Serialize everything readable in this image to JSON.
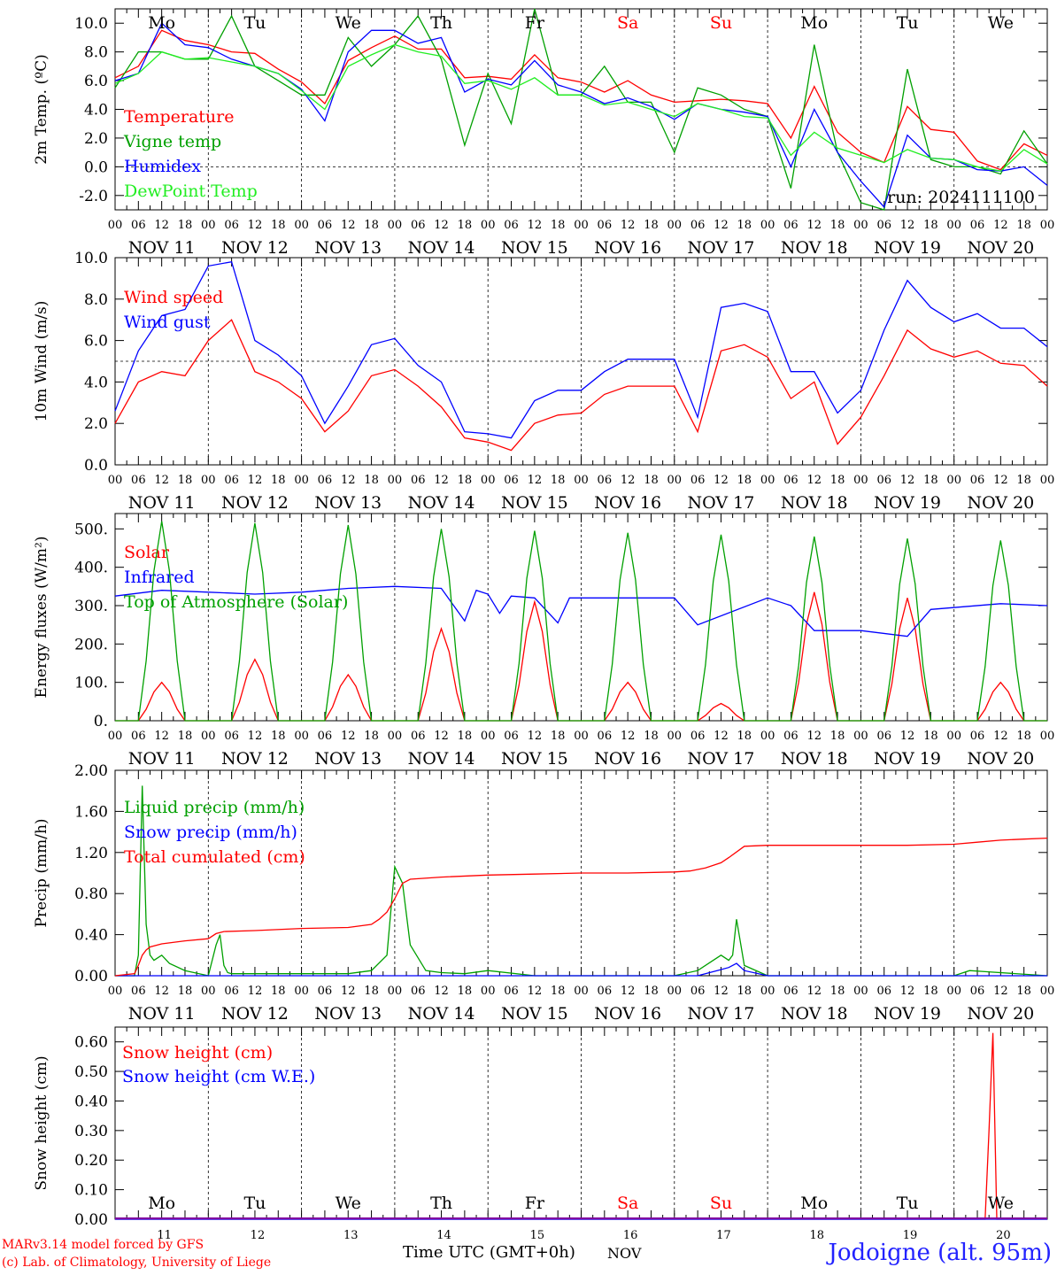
{
  "footer": {
    "model": "MARv3.14 model forced by GFS",
    "lab": "(c) Lab. of Climatology, University of Liege",
    "time_label": "Time UTC (GMT+0h)",
    "month_label": "NOV",
    "location": "Jodoigne (alt. 95m)"
  },
  "colors": {
    "red": "#ff0000",
    "green": "#00a000",
    "blue": "#0000ff",
    "lightgreen": "#22ee22",
    "weekend": "#ff0000",
    "weekday": "#000000",
    "snow_axis": "#8000a0"
  },
  "days": {
    "weekday_labels": [
      "Mo",
      "Tu",
      "We",
      "Th",
      "Fr",
      "Sa",
      "Su",
      "Mo",
      "Tu",
      "We"
    ],
    "weekend": [
      false,
      false,
      false,
      false,
      false,
      true,
      true,
      false,
      false,
      false
    ],
    "date_labels": [
      "NOV 11",
      "NOV 12",
      "NOV 13",
      "NOV 14",
      "NOV 15",
      "NOV 16",
      "NOV 17",
      "NOV 18",
      "NOV 19",
      "NOV 20"
    ],
    "day_numbers": [
      "11",
      "12",
      "13",
      "14",
      "15",
      "16",
      "17",
      "18",
      "19",
      "20"
    ],
    "hour_labels": [
      "00",
      "06",
      "12",
      "18"
    ],
    "final_hour_label": "00"
  },
  "chart_data": [
    {
      "type": "line",
      "ylabel": "2m Temp. (ºC)",
      "ylim": [
        -3,
        11
      ],
      "yticks": [
        "-2.0",
        "0.0",
        "2.0",
        "4.0",
        "6.0",
        "8.0",
        "10.0"
      ],
      "x_unit": "hours since NOV 11 00 UTC",
      "xlim": [
        0,
        240
      ],
      "reference_line": 0,
      "annotation": "run: 2024111100",
      "series": [
        {
          "name": "Temperature",
          "color": "red",
          "x": [
            0,
            6,
            12,
            18,
            24,
            30,
            36,
            42,
            48,
            54,
            60,
            66,
            72,
            78,
            84,
            90,
            96,
            102,
            108,
            114,
            120,
            126,
            132,
            138,
            144,
            150,
            156,
            162,
            168,
            174,
            180,
            186,
            192,
            198,
            204,
            210,
            216,
            222,
            228,
            234,
            240
          ],
          "y": [
            6.2,
            7.0,
            9.5,
            8.8,
            8.5,
            8.0,
            7.9,
            6.8,
            5.9,
            4.4,
            7.4,
            8.3,
            9.1,
            8.2,
            8.2,
            6.2,
            6.3,
            6.1,
            7.8,
            6.2,
            5.9,
            5.2,
            6.0,
            5.0,
            4.5,
            4.6,
            4.7,
            4.6,
            4.4,
            2.0,
            5.6,
            2.4,
            1.0,
            0.3,
            4.2,
            2.6,
            2.4,
            0.4,
            -0.2,
            1.6,
            0.8
          ]
        },
        {
          "name": "Vigne temp",
          "color": "green",
          "x": [
            0,
            6,
            12,
            18,
            24,
            30,
            36,
            42,
            48,
            54,
            60,
            66,
            72,
            78,
            84,
            90,
            96,
            102,
            108,
            114,
            120,
            126,
            132,
            138,
            144,
            150,
            156,
            162,
            168,
            174,
            180,
            186,
            192,
            198,
            204,
            210,
            216,
            222,
            228,
            234,
            240
          ],
          "y": [
            5.5,
            8.0,
            8.0,
            7.5,
            7.5,
            10.5,
            7.0,
            6.0,
            5.0,
            5.0,
            9.0,
            7.0,
            8.5,
            10.5,
            7.5,
            1.5,
            6.5,
            3.0,
            11.0,
            5.0,
            5.0,
            7.0,
            4.5,
            4.5,
            1.0,
            5.5,
            5.0,
            4.0,
            3.5,
            -1.5,
            8.5,
            1.0,
            -2.5,
            -3.0,
            6.8,
            0.5,
            0.0,
            0.0,
            -0.5,
            2.5,
            0.2
          ]
        },
        {
          "name": "Humidex",
          "color": "blue",
          "x": [
            0,
            6,
            12,
            18,
            24,
            30,
            36,
            42,
            48,
            54,
            60,
            66,
            72,
            78,
            84,
            90,
            96,
            102,
            108,
            114,
            120,
            126,
            132,
            138,
            144,
            150,
            156,
            162,
            168,
            174,
            180,
            186,
            192,
            198,
            204,
            210,
            216,
            222,
            228,
            234,
            240
          ],
          "y": [
            6.0,
            6.5,
            10.0,
            8.5,
            8.3,
            7.5,
            7.0,
            6.5,
            5.4,
            3.2,
            8.0,
            9.5,
            9.5,
            8.6,
            9.0,
            5.2,
            6.1,
            5.7,
            7.4,
            5.7,
            5.2,
            4.4,
            4.8,
            4.2,
            3.3,
            4.4,
            4.0,
            3.8,
            3.5,
            0.0,
            4.0,
            1.0,
            -1.0,
            -2.8,
            2.2,
            0.6,
            0.5,
            -0.2,
            -0.3,
            0.0,
            -1.3
          ]
        },
        {
          "name": "DewPoint Temp",
          "color": "lightgreen",
          "x": [
            0,
            6,
            12,
            18,
            24,
            30,
            36,
            42,
            48,
            54,
            60,
            66,
            72,
            78,
            84,
            90,
            96,
            102,
            108,
            114,
            120,
            126,
            132,
            138,
            144,
            150,
            156,
            162,
            168,
            174,
            180,
            186,
            192,
            198,
            204,
            210,
            216,
            222,
            228,
            234,
            240
          ],
          "y": [
            5.8,
            6.5,
            8.0,
            7.5,
            7.6,
            7.3,
            7.0,
            6.5,
            5.3,
            4.0,
            7.0,
            7.8,
            8.5,
            8.0,
            7.7,
            5.8,
            6.0,
            5.4,
            6.2,
            5.0,
            5.0,
            4.3,
            4.5,
            4.0,
            3.5,
            4.4,
            4.0,
            3.5,
            3.4,
            0.8,
            2.4,
            1.3,
            0.8,
            0.3,
            1.2,
            0.6,
            0.5,
            0.0,
            -0.3,
            1.2,
            0.2
          ]
        }
      ]
    },
    {
      "type": "line",
      "ylabel": "10m Wind (m/s)",
      "ylim": [
        0,
        10
      ],
      "yticks": [
        "0.0",
        "2.0",
        "4.0",
        "6.0",
        "8.0",
        "10.0"
      ],
      "x_unit": "hours since NOV 11 00 UTC",
      "xlim": [
        0,
        240
      ],
      "reference_line": 5,
      "series": [
        {
          "name": "Wind speed",
          "color": "red",
          "x": [
            0,
            6,
            12,
            18,
            24,
            30,
            36,
            42,
            48,
            54,
            60,
            66,
            72,
            78,
            84,
            90,
            96,
            102,
            108,
            114,
            120,
            126,
            132,
            138,
            144,
            150,
            156,
            162,
            168,
            174,
            180,
            186,
            192,
            198,
            204,
            210,
            216,
            222,
            228,
            234,
            240
          ],
          "y": [
            2.0,
            4.0,
            4.5,
            4.3,
            6.0,
            7.0,
            4.5,
            4.0,
            3.2,
            1.6,
            2.6,
            4.3,
            4.6,
            3.8,
            2.8,
            1.3,
            1.1,
            0.7,
            2.0,
            2.4,
            2.5,
            3.4,
            3.8,
            3.8,
            3.8,
            1.6,
            5.5,
            5.8,
            5.2,
            3.2,
            4.0,
            1.0,
            2.3,
            4.3,
            6.5,
            5.6,
            5.2,
            5.5,
            4.9,
            4.8,
            3.8
          ]
        },
        {
          "name": "Wind gust",
          "color": "blue",
          "x": [
            0,
            6,
            12,
            18,
            24,
            30,
            36,
            42,
            48,
            54,
            60,
            66,
            72,
            78,
            84,
            90,
            96,
            102,
            108,
            114,
            120,
            126,
            132,
            138,
            144,
            150,
            156,
            162,
            168,
            174,
            180,
            186,
            192,
            198,
            204,
            210,
            216,
            222,
            228,
            234,
            240
          ],
          "y": [
            2.6,
            5.5,
            7.2,
            7.5,
            9.6,
            9.8,
            6.0,
            5.3,
            4.3,
            2.0,
            3.8,
            5.8,
            6.1,
            4.8,
            4.0,
            1.6,
            1.5,
            1.3,
            3.1,
            3.6,
            3.6,
            4.5,
            5.1,
            5.1,
            5.1,
            2.3,
            7.6,
            7.8,
            7.4,
            4.5,
            4.5,
            2.5,
            3.6,
            6.5,
            8.9,
            7.6,
            6.9,
            7.3,
            6.6,
            6.6,
            5.7
          ]
        }
      ]
    },
    {
      "type": "line",
      "ylabel": "Energy fluxes (W/m²)",
      "ylim": [
        0,
        540
      ],
      "yticks": [
        "0.",
        "100.",
        "200.",
        "300.",
        "400.",
        "500."
      ],
      "x_unit": "hours since NOV 11 00 UTC",
      "xlim": [
        0,
        240
      ],
      "series": [
        {
          "name": "Solar",
          "color": "red",
          "daily_peak_hour": 12,
          "daily_peaks": [
            100,
            160,
            120,
            240,
            310,
            100,
            45,
            335,
            320,
            100
          ]
        },
        {
          "name": "Infrared",
          "color": "blue",
          "x": [
            0,
            12,
            24,
            36,
            48,
            60,
            72,
            84,
            90,
            93,
            96,
            99,
            102,
            108,
            114,
            117,
            120,
            132,
            144,
            150,
            168,
            174,
            180,
            192,
            204,
            210,
            228,
            240
          ],
          "y": [
            325,
            340,
            335,
            330,
            335,
            345,
            350,
            345,
            260,
            340,
            330,
            280,
            325,
            320,
            255,
            320,
            320,
            320,
            320,
            250,
            320,
            300,
            235,
            235,
            220,
            290,
            305,
            300
          ]
        },
        {
          "name": "Top of Atmosphere (Solar)",
          "color": "green",
          "daily_peak_hour": 12,
          "daily_peaks": [
            520,
            515,
            510,
            500,
            495,
            490,
            485,
            480,
            475,
            470
          ]
        }
      ]
    },
    {
      "type": "line",
      "ylabel": "Precip (mm/h)",
      "ylim": [
        0,
        2.0
      ],
      "yticks": [
        "0.00",
        "0.40",
        "0.80",
        "1.20",
        "1.60",
        "2.00"
      ],
      "x_unit": "hours since NOV 11 00 UTC",
      "xlim": [
        0,
        240
      ],
      "series": [
        {
          "name": "Liquid precip (mm/h)",
          "color": "green",
          "x": [
            0,
            5,
            6,
            7,
            8,
            9,
            10,
            12,
            14,
            18,
            24,
            26,
            27,
            28,
            29,
            30,
            36,
            48,
            60,
            66,
            70,
            72,
            74,
            76,
            80,
            84,
            90,
            96,
            108,
            144,
            150,
            154,
            156,
            158,
            159,
            160,
            162,
            168,
            180,
            216,
            220,
            224,
            240
          ],
          "y": [
            0,
            0,
            0.2,
            1.85,
            0.5,
            0.2,
            0.15,
            0.2,
            0.12,
            0.05,
            0,
            0.3,
            0.4,
            0.1,
            0.03,
            0.02,
            0.02,
            0.02,
            0.02,
            0.05,
            0.2,
            1.06,
            0.9,
            0.3,
            0.05,
            0.03,
            0.02,
            0.05,
            0,
            0,
            0.05,
            0.15,
            0.2,
            0.15,
            0.2,
            0.55,
            0.1,
            0,
            0,
            0,
            0.05,
            0.04,
            0
          ]
        },
        {
          "name": "Snow precip (mm/h)",
          "color": "blue",
          "x": [
            0,
            150,
            155,
            158,
            160,
            162,
            168,
            240
          ],
          "y": [
            0,
            0,
            0.05,
            0.08,
            0.12,
            0.05,
            0,
            0
          ]
        },
        {
          "name": "Total cumulated (cm)",
          "color": "red",
          "x": [
            0,
            5,
            6,
            7,
            8,
            9,
            12,
            18,
            24,
            26,
            28,
            36,
            48,
            60,
            66,
            68,
            70,
            72,
            74,
            76,
            84,
            96,
            108,
            120,
            132,
            144,
            148,
            152,
            156,
            158,
            162,
            168,
            180,
            192,
            204,
            216,
            222,
            228,
            234,
            240
          ],
          "y": [
            0,
            0.02,
            0.1,
            0.2,
            0.25,
            0.28,
            0.31,
            0.34,
            0.36,
            0.41,
            0.43,
            0.44,
            0.46,
            0.47,
            0.5,
            0.55,
            0.62,
            0.75,
            0.9,
            0.94,
            0.96,
            0.98,
            0.99,
            1.0,
            1.0,
            1.01,
            1.02,
            1.05,
            1.1,
            1.15,
            1.26,
            1.27,
            1.27,
            1.27,
            1.27,
            1.28,
            1.3,
            1.32,
            1.33,
            1.34
          ]
        }
      ]
    },
    {
      "type": "line",
      "ylabel": "Snow height (cm)",
      "ylim": [
        0,
        0.65
      ],
      "yticks": [
        "0.00",
        "0.10",
        "0.20",
        "0.30",
        "0.40",
        "0.50",
        "0.60"
      ],
      "x_unit": "hours since NOV 11 00 UTC",
      "xlim": [
        0,
        240
      ],
      "series": [
        {
          "name": "Snow height (cm)",
          "color": "red",
          "x": [
            0,
            224,
            225,
            226,
            227,
            240
          ],
          "y": [
            0,
            0,
            0.3,
            0.63,
            0,
            0
          ]
        },
        {
          "name": "Snow height (cm W.E.)",
          "color": "blue",
          "x": [
            0,
            240
          ],
          "y": [
            0,
            0
          ]
        }
      ]
    }
  ]
}
